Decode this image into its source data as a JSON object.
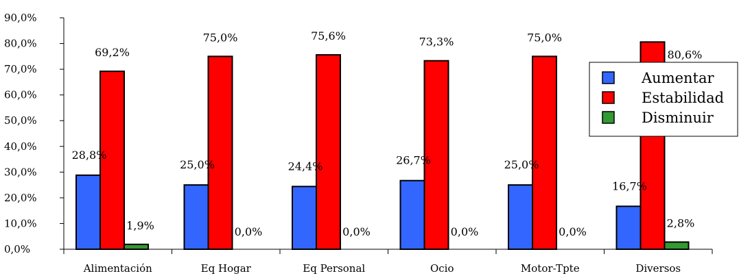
{
  "chart_data": {
    "type": "bar",
    "title": "",
    "xlabel": "",
    "ylabel": "",
    "categories": [
      "Alimentación",
      "Eq Hogar",
      "Eq Personal",
      "Ocio",
      "Motor-Tpte",
      "Diversos"
    ],
    "series": [
      {
        "name": "Aumentar",
        "color": "#3366ff",
        "values": [
          28.8,
          25.0,
          24.4,
          26.7,
          25.0,
          16.7
        ],
        "labels": [
          "28,8%",
          "25,0%",
          "24,4%",
          "26,7%",
          "25,0%",
          "16,7%"
        ]
      },
      {
        "name": "Estabilidad",
        "color": "#ff0000",
        "values": [
          69.2,
          75.0,
          75.6,
          73.3,
          75.0,
          80.6
        ],
        "labels": [
          "69,2%",
          "75,0%",
          "75,6%",
          "73,3%",
          "75,0%",
          "80,6%"
        ]
      },
      {
        "name": "Disminuir",
        "color": "#339933",
        "values": [
          1.9,
          0.0,
          0.0,
          0.0,
          0.0,
          2.8
        ],
        "labels": [
          "1,9%",
          "0,0%",
          "0,0%",
          "0,0%",
          "0,0%",
          "2,8%"
        ]
      }
    ],
    "ylim": [
      0,
      90
    ],
    "yticks": [
      "0,0%",
      "10,0%",
      "20,0%",
      "30,0%",
      "40,0%",
      "50,0%",
      "60,0%",
      "70,0%",
      "80,0%",
      "90,0%"
    ],
    "grid": false,
    "legend": "right"
  }
}
